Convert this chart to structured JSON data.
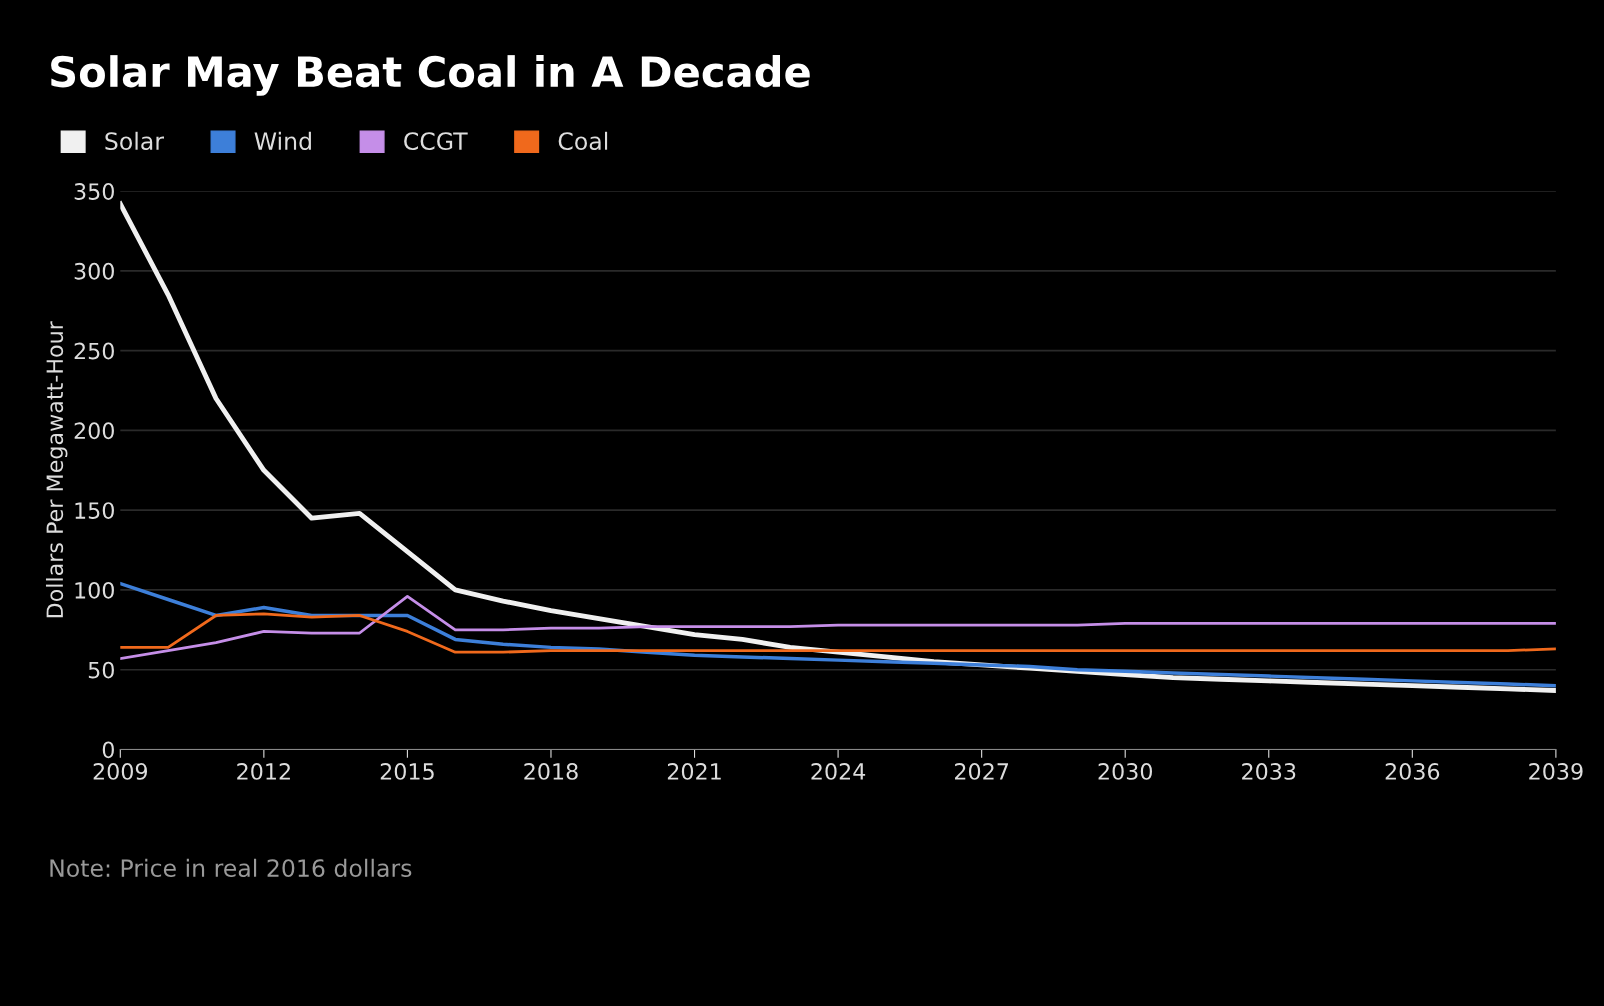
{
  "chart_data": {
    "type": "line",
    "title": "Solar May Beat Coal in A Decade",
    "ylabel": "Dollars Per Megawatt-Hour",
    "x": [
      2009,
      2010,
      2011,
      2012,
      2013,
      2014,
      2015,
      2016,
      2017,
      2018,
      2019,
      2020,
      2021,
      2022,
      2023,
      2024,
      2025,
      2026,
      2027,
      2028,
      2029,
      2030,
      2031,
      2032,
      2033,
      2034,
      2035,
      2036,
      2037,
      2038,
      2039
    ],
    "series": [
      {
        "name": "Solar",
        "color": "#f0f0f0",
        "values": [
          342,
          285,
          220,
          175,
          145,
          148,
          124,
          100,
          93,
          87,
          82,
          77,
          72,
          69,
          64,
          61,
          58,
          55,
          53,
          51,
          49,
          47,
          45,
          44,
          43,
          42,
          41,
          40,
          39,
          38,
          37
        ]
      },
      {
        "name": "Wind",
        "color": "#3d7fd9",
        "values": [
          104,
          94,
          84,
          89,
          84,
          84,
          84,
          69,
          66,
          64,
          63,
          61,
          59,
          58,
          57,
          56,
          55,
          54,
          53,
          52,
          50,
          49,
          48,
          47,
          46,
          45,
          44,
          43,
          42,
          41,
          40
        ]
      },
      {
        "name": "CCGT",
        "color": "#c58ee8",
        "values": [
          57,
          62,
          67,
          74,
          73,
          73,
          96,
          75,
          75,
          76,
          76,
          77,
          77,
          77,
          77,
          78,
          78,
          78,
          78,
          78,
          78,
          79,
          79,
          79,
          79,
          79,
          79,
          79,
          79,
          79,
          79
        ]
      },
      {
        "name": "Coal",
        "color": "#f0691c",
        "values": [
          64,
          64,
          84,
          85,
          83,
          84,
          74,
          61,
          61,
          62,
          62,
          62,
          62,
          62,
          62,
          62,
          62,
          62,
          62,
          62,
          62,
          62,
          62,
          62,
          62,
          62,
          62,
          62,
          62,
          62,
          63
        ]
      }
    ],
    "xlim": [
      2009,
      2039
    ],
    "xticks": [
      2009,
      2012,
      2015,
      2018,
      2021,
      2024,
      2027,
      2030,
      2033,
      2036,
      2039
    ],
    "ylim": [
      0,
      350
    ],
    "yticks": [
      0,
      50,
      100,
      150,
      200,
      250,
      300,
      350
    ],
    "grid": "y",
    "legend": "top left",
    "marker": "none",
    "line_style": "solid",
    "annotations": [
      "Note: Price in real 2016 dollars"
    ]
  }
}
